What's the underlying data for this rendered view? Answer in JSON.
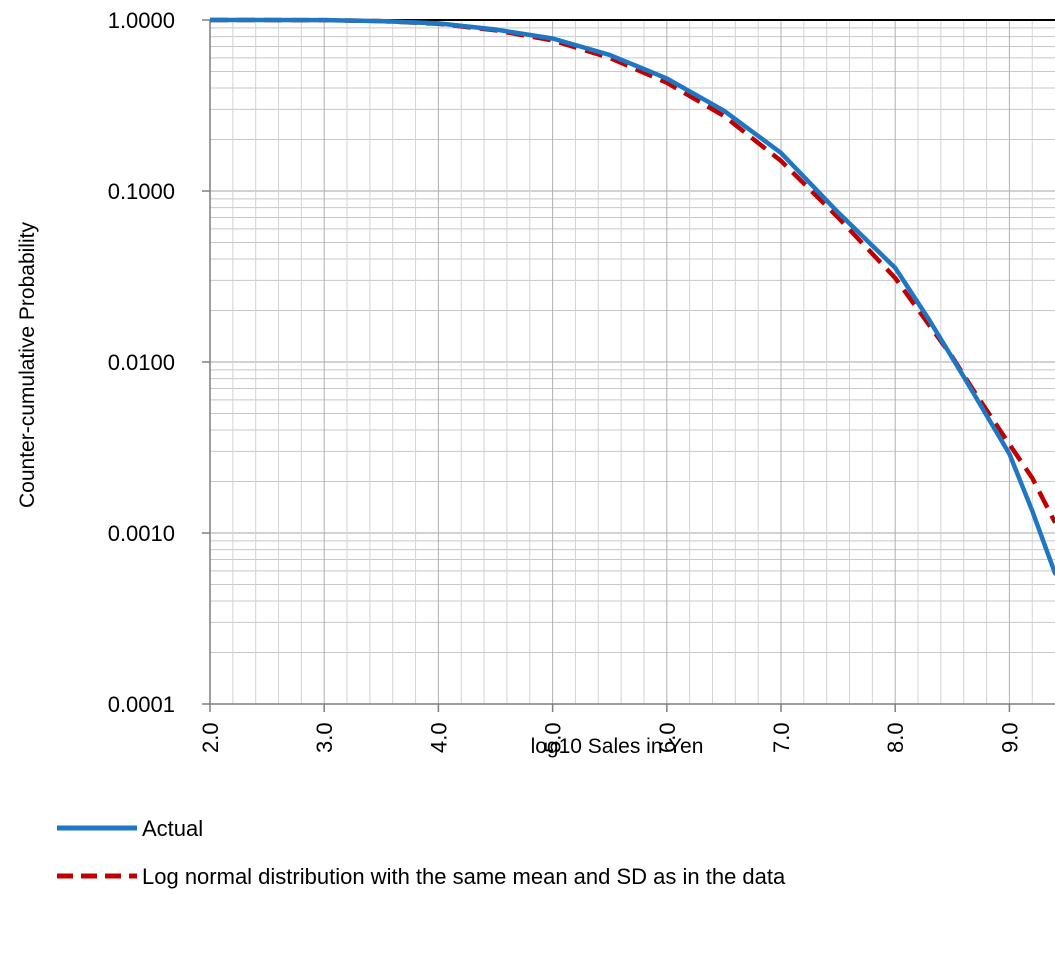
{
  "chart_data": {
    "type": "line",
    "title": "",
    "xlabel": "log10 Sales in Yen",
    "ylabel": "Counter-cumulative Probability",
    "xlim": [
      2.0,
      9.4
    ],
    "ylim": [
      0.0001,
      1.0
    ],
    "y_scale": "log",
    "grid": true,
    "legend_position": "bottom",
    "x_ticks": [
      "2.0",
      "3.0",
      "4.0",
      "5.0",
      "6.0",
      "7.0",
      "8.0",
      "9.0"
    ],
    "y_ticks": [
      "1.0000",
      "0.1000",
      "0.0100",
      "0.0010",
      "0.0001"
    ],
    "series": [
      {
        "name": "Actual",
        "color": "#1f77c4",
        "style": "solid",
        "points": [
          [
            2.0,
            1.0
          ],
          [
            3.0,
            0.998
          ],
          [
            3.5,
            0.985
          ],
          [
            4.0,
            0.955
          ],
          [
            4.5,
            0.88
          ],
          [
            5.0,
            0.78
          ],
          [
            5.5,
            0.625
          ],
          [
            6.0,
            0.455
          ],
          [
            6.5,
            0.295
          ],
          [
            7.0,
            0.167
          ],
          [
            7.5,
            0.075
          ],
          [
            8.0,
            0.0355
          ],
          [
            8.3,
            0.0175
          ],
          [
            8.6,
            0.0082
          ],
          [
            9.0,
            0.0029
          ],
          [
            9.2,
            0.00135
          ],
          [
            9.4,
            0.00058
          ]
        ]
      },
      {
        "name": "Log normal distribution with the same mean and SD as in the data",
        "color": "#c00000",
        "style": "dashed",
        "points": [
          [
            2.0,
            1.0
          ],
          [
            3.0,
            0.998
          ],
          [
            3.5,
            0.985
          ],
          [
            4.0,
            0.95
          ],
          [
            4.5,
            0.87
          ],
          [
            5.0,
            0.76
          ],
          [
            5.5,
            0.6
          ],
          [
            6.0,
            0.43
          ],
          [
            6.5,
            0.275
          ],
          [
            7.0,
            0.15
          ],
          [
            7.5,
            0.07
          ],
          [
            8.0,
            0.031
          ],
          [
            8.5,
            0.0107
          ],
          [
            8.7,
            0.0066
          ],
          [
            9.0,
            0.0033
          ],
          [
            9.2,
            0.0021
          ],
          [
            9.4,
            0.00115
          ]
        ]
      }
    ]
  }
}
